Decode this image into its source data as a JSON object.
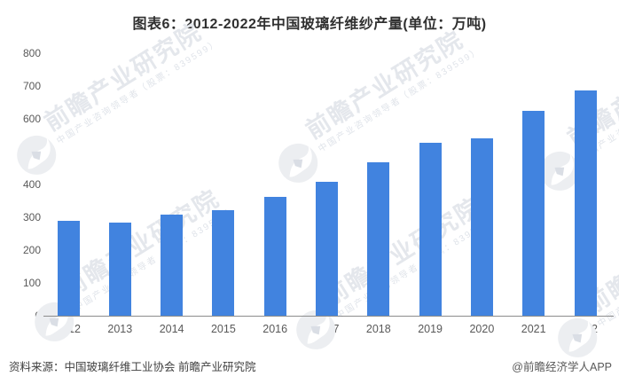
{
  "title": "图表6：2012-2022年中国玻璃纤维纱产量(单位：万吨)",
  "chart_data": {
    "type": "bar",
    "title": "图表6：2012-2022年中国玻璃纤维纱产量(单位：万吨)",
    "unit": "万吨",
    "categories": [
      "2012",
      "2013",
      "2014",
      "2015",
      "2016",
      "2017",
      "2018",
      "2019",
      "2020",
      "2021",
      "2022"
    ],
    "values": [
      288,
      285,
      308,
      322,
      362,
      408,
      468,
      527,
      541,
      624,
      687
    ],
    "xlabel": "",
    "ylabel": "",
    "ylim": [
      0,
      800
    ],
    "yticks": [
      0,
      100,
      200,
      300,
      400,
      500,
      600,
      700,
      800
    ],
    "grid": false,
    "legend": null,
    "bar_color": "#4183DF"
  },
  "watermark": {
    "logo_icon": "qianzhan-circle-logo",
    "text_large": "前瞻产业研究院",
    "text_small": "中国产业咨询领导者（股票：839599）"
  },
  "footer": {
    "source": "资料来源：中国玻璃纤维工业协会 前瞻产业研究院",
    "attribution": "@前瞻经济学人APP"
  },
  "colors": {
    "bar": "#4183DF",
    "axis_line": "#8c8c8c",
    "tick_label": "#595959",
    "title_text": "#303030",
    "watermark_text": "#e4e7ec"
  }
}
